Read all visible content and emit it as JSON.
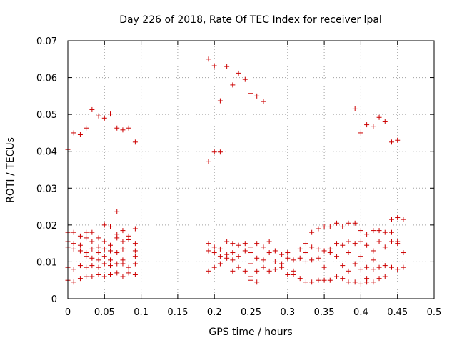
{
  "chart_data": {
    "type": "scatter",
    "title": "Day 226 of 2018, Rate Of TEC Index for receiver lpal",
    "xlabel": "GPS time / hours",
    "ylabel": "ROTI / TECUs",
    "xlim": [
      0,
      0.5
    ],
    "ylim": [
      0,
      0.07
    ],
    "xticks": [
      0,
      0.05,
      0.1,
      0.15,
      0.2,
      0.25,
      0.3,
      0.35,
      0.4,
      0.45,
      0.5
    ],
    "xtick_labels": [
      "0",
      "0.05",
      "0.1",
      "0.15",
      "0.2",
      "0.25",
      "0.3",
      "0.35",
      "0.4",
      "0.45",
      "0.5"
    ],
    "yticks": [
      0,
      0.01,
      0.02,
      0.03,
      0.04,
      0.05,
      0.06,
      0.07
    ],
    "ytick_labels": [
      "0",
      "0.01",
      "0.02",
      "0.03",
      "0.04",
      "0.05",
      "0.06",
      "0.07"
    ],
    "grid": true,
    "marker": "+",
    "color": "#cc0000",
    "series": [
      {
        "name": "ROTI",
        "points": [
          [
            0.0,
            0.0405
          ],
          [
            0.008,
            0.045
          ],
          [
            0.017,
            0.0445
          ],
          [
            0.025,
            0.0463
          ],
          [
            0.033,
            0.0513
          ],
          [
            0.042,
            0.0496
          ],
          [
            0.05,
            0.049
          ],
          [
            0.058,
            0.0501
          ],
          [
            0.067,
            0.0463
          ],
          [
            0.075,
            0.0458
          ],
          [
            0.083,
            0.0463
          ],
          [
            0.092,
            0.0425
          ],
          [
            0.067,
            0.0236
          ],
          [
            0.0,
            0.018
          ],
          [
            0.008,
            0.018
          ],
          [
            0.017,
            0.017
          ],
          [
            0.025,
            0.018
          ],
          [
            0.033,
            0.018
          ],
          [
            0.042,
            0.0165
          ],
          [
            0.05,
            0.02
          ],
          [
            0.058,
            0.0195
          ],
          [
            0.067,
            0.0175
          ],
          [
            0.075,
            0.0185
          ],
          [
            0.083,
            0.017
          ],
          [
            0.092,
            0.019
          ],
          [
            0.0,
            0.0155
          ],
          [
            0.008,
            0.015
          ],
          [
            0.017,
            0.0145
          ],
          [
            0.025,
            0.0165
          ],
          [
            0.033,
            0.0155
          ],
          [
            0.042,
            0.014
          ],
          [
            0.05,
            0.0155
          ],
          [
            0.058,
            0.0145
          ],
          [
            0.067,
            0.0165
          ],
          [
            0.075,
            0.0155
          ],
          [
            0.083,
            0.016
          ],
          [
            0.092,
            0.015
          ],
          [
            0.0,
            0.014
          ],
          [
            0.008,
            0.0135
          ],
          [
            0.017,
            0.013
          ],
          [
            0.025,
            0.0125
          ],
          [
            0.033,
            0.0135
          ],
          [
            0.042,
            0.0125
          ],
          [
            0.05,
            0.0135
          ],
          [
            0.058,
            0.013
          ],
          [
            0.067,
            0.0125
          ],
          [
            0.075,
            0.0135
          ],
          [
            0.092,
            0.013
          ],
          [
            0.025,
            0.0115
          ],
          [
            0.033,
            0.011
          ],
          [
            0.042,
            0.0105
          ],
          [
            0.05,
            0.0115
          ],
          [
            0.058,
            0.0105
          ],
          [
            0.075,
            0.0105
          ],
          [
            0.092,
            0.0115
          ],
          [
            0.0,
            0.0085
          ],
          [
            0.008,
            0.008
          ],
          [
            0.017,
            0.009
          ],
          [
            0.025,
            0.0085
          ],
          [
            0.033,
            0.009
          ],
          [
            0.042,
            0.0085
          ],
          [
            0.05,
            0.0095
          ],
          [
            0.058,
            0.009
          ],
          [
            0.067,
            0.0095
          ],
          [
            0.075,
            0.0095
          ],
          [
            0.083,
            0.0085
          ],
          [
            0.092,
            0.0095
          ],
          [
            0.0,
            0.005
          ],
          [
            0.008,
            0.0045
          ],
          [
            0.017,
            0.0055
          ],
          [
            0.025,
            0.006
          ],
          [
            0.033,
            0.006
          ],
          [
            0.042,
            0.0065
          ],
          [
            0.05,
            0.006
          ],
          [
            0.058,
            0.0065
          ],
          [
            0.067,
            0.007
          ],
          [
            0.075,
            0.006
          ],
          [
            0.083,
            0.007
          ],
          [
            0.092,
            0.0065
          ],
          [
            0.192,
            0.065
          ],
          [
            0.2,
            0.0632
          ],
          [
            0.208,
            0.0537
          ],
          [
            0.217,
            0.063
          ],
          [
            0.225,
            0.058
          ],
          [
            0.233,
            0.0612
          ],
          [
            0.242,
            0.0595
          ],
          [
            0.25,
            0.0557
          ],
          [
            0.258,
            0.055
          ],
          [
            0.267,
            0.0535
          ],
          [
            0.192,
            0.0373
          ],
          [
            0.2,
            0.0398
          ],
          [
            0.208,
            0.0398
          ],
          [
            0.192,
            0.015
          ],
          [
            0.192,
            0.013
          ],
          [
            0.192,
            0.0075
          ],
          [
            0.2,
            0.014
          ],
          [
            0.2,
            0.0125
          ],
          [
            0.2,
            0.0085
          ],
          [
            0.208,
            0.0135
          ],
          [
            0.208,
            0.0115
          ],
          [
            0.208,
            0.0095
          ],
          [
            0.217,
            0.0155
          ],
          [
            0.217,
            0.012
          ],
          [
            0.217,
            0.011
          ],
          [
            0.225,
            0.015
          ],
          [
            0.225,
            0.0125
          ],
          [
            0.225,
            0.0105
          ],
          [
            0.225,
            0.0075
          ],
          [
            0.233,
            0.0145
          ],
          [
            0.233,
            0.0115
          ],
          [
            0.233,
            0.0085
          ],
          [
            0.242,
            0.015
          ],
          [
            0.242,
            0.013
          ],
          [
            0.242,
            0.0075
          ],
          [
            0.25,
            0.014
          ],
          [
            0.25,
            0.0125
          ],
          [
            0.25,
            0.0095
          ],
          [
            0.25,
            0.006
          ],
          [
            0.25,
            0.005
          ],
          [
            0.258,
            0.015
          ],
          [
            0.258,
            0.011
          ],
          [
            0.258,
            0.0075
          ],
          [
            0.258,
            0.0045
          ],
          [
            0.267,
            0.014
          ],
          [
            0.267,
            0.0105
          ],
          [
            0.267,
            0.0085
          ],
          [
            0.275,
            0.0155
          ],
          [
            0.275,
            0.0125
          ],
          [
            0.275,
            0.0075
          ],
          [
            0.283,
            0.013
          ],
          [
            0.283,
            0.01
          ],
          [
            0.283,
            0.008
          ],
          [
            0.292,
            0.012
          ],
          [
            0.292,
            0.0095
          ],
          [
            0.292,
            0.0085
          ],
          [
            0.3,
            0.0125
          ],
          [
            0.3,
            0.011
          ],
          [
            0.3,
            0.0065
          ],
          [
            0.308,
            0.0105
          ],
          [
            0.308,
            0.0075
          ],
          [
            0.308,
            0.0065
          ],
          [
            0.317,
            0.0135
          ],
          [
            0.317,
            0.011
          ],
          [
            0.317,
            0.0055
          ],
          [
            0.325,
            0.015
          ],
          [
            0.325,
            0.0125
          ],
          [
            0.325,
            0.01
          ],
          [
            0.325,
            0.0045
          ],
          [
            0.333,
            0.018
          ],
          [
            0.333,
            0.014
          ],
          [
            0.333,
            0.0105
          ],
          [
            0.333,
            0.0045
          ],
          [
            0.342,
            0.019
          ],
          [
            0.342,
            0.0135
          ],
          [
            0.342,
            0.011
          ],
          [
            0.342,
            0.005
          ],
          [
            0.35,
            0.0195
          ],
          [
            0.35,
            0.013
          ],
          [
            0.35,
            0.0085
          ],
          [
            0.35,
            0.005
          ],
          [
            0.358,
            0.0195
          ],
          [
            0.358,
            0.0135
          ],
          [
            0.358,
            0.0125
          ],
          [
            0.358,
            0.005
          ],
          [
            0.367,
            0.0205
          ],
          [
            0.367,
            0.015
          ],
          [
            0.367,
            0.0115
          ],
          [
            0.367,
            0.006
          ],
          [
            0.375,
            0.0195
          ],
          [
            0.375,
            0.0145
          ],
          [
            0.375,
            0.009
          ],
          [
            0.375,
            0.0055
          ],
          [
            0.383,
            0.0205
          ],
          [
            0.383,
            0.0155
          ],
          [
            0.383,
            0.0125
          ],
          [
            0.383,
            0.0075
          ],
          [
            0.383,
            0.0045
          ],
          [
            0.392,
            0.0515
          ],
          [
            0.392,
            0.0205
          ],
          [
            0.392,
            0.015
          ],
          [
            0.392,
            0.0095
          ],
          [
            0.392,
            0.0045
          ],
          [
            0.4,
            0.045
          ],
          [
            0.4,
            0.0185
          ],
          [
            0.4,
            0.0155
          ],
          [
            0.4,
            0.0115
          ],
          [
            0.4,
            0.008
          ],
          [
            0.4,
            0.004
          ],
          [
            0.408,
            0.0472
          ],
          [
            0.408,
            0.0175
          ],
          [
            0.408,
            0.0145
          ],
          [
            0.408,
            0.0085
          ],
          [
            0.408,
            0.0055
          ],
          [
            0.408,
            0.0045
          ],
          [
            0.417,
            0.0468
          ],
          [
            0.417,
            0.0185
          ],
          [
            0.417,
            0.013
          ],
          [
            0.417,
            0.0105
          ],
          [
            0.417,
            0.008
          ],
          [
            0.417,
            0.0045
          ],
          [
            0.425,
            0.0492
          ],
          [
            0.425,
            0.0185
          ],
          [
            0.425,
            0.0155
          ],
          [
            0.425,
            0.0085
          ],
          [
            0.425,
            0.0055
          ],
          [
            0.433,
            0.048
          ],
          [
            0.433,
            0.018
          ],
          [
            0.433,
            0.014
          ],
          [
            0.433,
            0.009
          ],
          [
            0.433,
            0.006
          ],
          [
            0.442,
            0.0425
          ],
          [
            0.442,
            0.0215
          ],
          [
            0.442,
            0.018
          ],
          [
            0.442,
            0.0155
          ],
          [
            0.442,
            0.0085
          ],
          [
            0.45,
            0.043
          ],
          [
            0.45,
            0.022
          ],
          [
            0.45,
            0.0155
          ],
          [
            0.45,
            0.015
          ],
          [
            0.45,
            0.008
          ],
          [
            0.458,
            0.0215
          ],
          [
            0.458,
            0.0125
          ],
          [
            0.458,
            0.0085
          ]
        ]
      }
    ]
  }
}
